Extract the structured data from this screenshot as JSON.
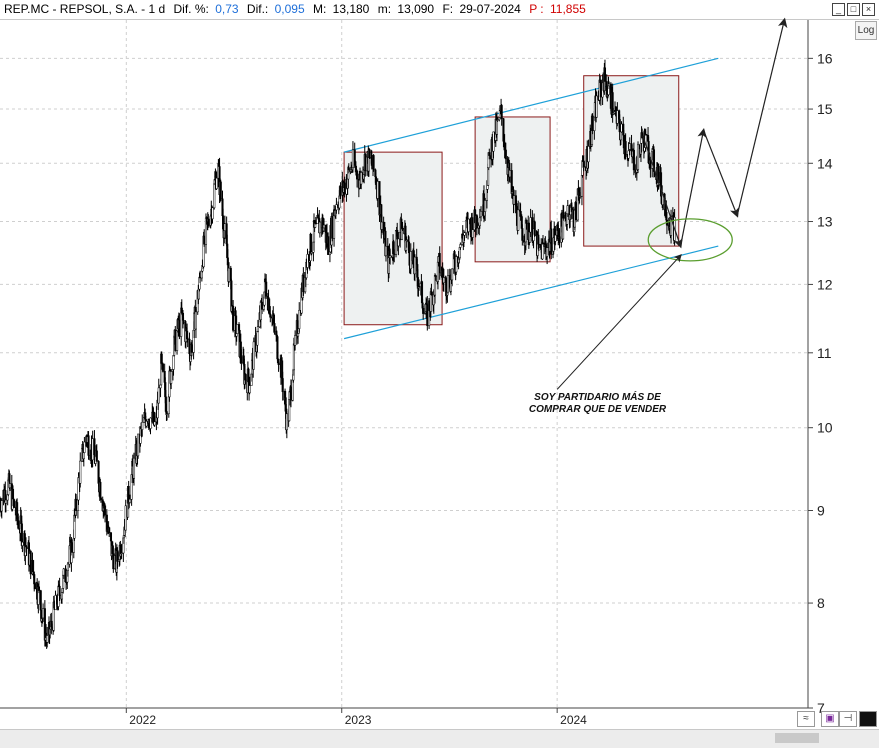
{
  "header": {
    "symbol": "REP.MC - REPSOL,  S.A. -  1 d",
    "dif_pct_label": "Dif. %:",
    "dif_pct_value": "0,73",
    "dif_label": "Dif.:",
    "dif_value": "0,095",
    "max_label": "M:",
    "max_value": "13,180",
    "min_label": "m:",
    "min_value": "13,090",
    "date_label": "F:",
    "date_value": "29-07-2024",
    "p_label": "P :",
    "p_value": "11,855",
    "colors": {
      "label": "#000000",
      "value_blue": "#1e6fd9",
      "value_red": "#d00000"
    }
  },
  "buttons": {
    "log_label": "Log"
  },
  "annotation": {
    "text": "SOY PARTIDARIO MÁS DE COMPRAR QUE DE VENDER"
  },
  "window_controls": [
    "minimize-icon",
    "maximize-icon",
    "close-icon"
  ],
  "chart_data": {
    "type": "candlestick",
    "y_scale": "log",
    "ylim": [
      7,
      16.8
    ],
    "y_ticks": [
      7,
      8,
      9,
      10,
      11,
      12,
      13,
      14,
      15,
      16
    ],
    "x_range": [
      "2021-06-01",
      "2025-03-01"
    ],
    "x_ticks": [
      {
        "label": "2022",
        "date": "2022-01-01"
      },
      {
        "label": "2023",
        "date": "2023-01-01"
      },
      {
        "label": "2024",
        "date": "2024-01-01"
      }
    ],
    "grid": true,
    "price_path": [
      [
        "2021-06-01",
        9.1
      ],
      [
        "2021-06-15",
        9.3
      ],
      [
        "2021-07-01",
        8.9
      ],
      [
        "2021-07-20",
        8.5
      ],
      [
        "2021-08-05",
        8.1
      ],
      [
        "2021-08-20",
        7.6
      ],
      [
        "2021-09-05",
        8.0
      ],
      [
        "2021-09-20",
        8.3
      ],
      [
        "2021-10-01",
        8.6
      ],
      [
        "2021-10-15",
        9.5
      ],
      [
        "2021-10-25",
        9.9
      ],
      [
        "2021-11-10",
        9.6
      ],
      [
        "2021-11-25",
        9.0
      ],
      [
        "2021-12-05",
        8.6
      ],
      [
        "2021-12-15",
        8.4
      ],
      [
        "2021-12-28",
        8.8
      ],
      [
        "2022-01-10",
        9.4
      ],
      [
        "2022-01-25",
        9.9
      ],
      [
        "2022-02-05",
        10.2
      ],
      [
        "2022-02-20",
        10.0
      ],
      [
        "2022-03-01",
        10.8
      ],
      [
        "2022-03-10",
        10.3
      ],
      [
        "2022-03-25",
        11.2
      ],
      [
        "2022-04-05",
        11.5
      ],
      [
        "2022-04-20",
        11.0
      ],
      [
        "2022-05-05",
        12.0
      ],
      [
        "2022-05-15",
        12.8
      ],
      [
        "2022-05-25",
        13.2
      ],
      [
        "2022-06-05",
        14.0
      ],
      [
        "2022-06-10",
        13.4
      ],
      [
        "2022-06-20",
        12.5
      ],
      [
        "2022-07-01",
        11.5
      ],
      [
        "2022-07-10",
        11.2
      ],
      [
        "2022-07-20",
        10.7
      ],
      [
        "2022-07-28",
        10.6
      ],
      [
        "2022-08-10",
        11.2
      ],
      [
        "2022-08-25",
        12.0
      ],
      [
        "2022-09-05",
        11.5
      ],
      [
        "2022-09-20",
        10.8
      ],
      [
        "2022-10-01",
        10.0
      ],
      [
        "2022-10-10",
        10.8
      ],
      [
        "2022-10-20",
        11.5
      ],
      [
        "2022-11-01",
        12.3
      ],
      [
        "2022-11-15",
        12.8
      ],
      [
        "2022-11-28",
        13.0
      ],
      [
        "2022-12-10",
        12.6
      ],
      [
        "2022-12-22",
        13.3
      ],
      [
        "2023-01-05",
        13.6
      ],
      [
        "2023-01-20",
        14.0
      ],
      [
        "2023-02-01",
        13.7
      ],
      [
        "2023-02-10",
        14.1
      ],
      [
        "2023-02-20",
        14.0
      ],
      [
        "2023-03-01",
        13.7
      ],
      [
        "2023-03-10",
        13.0
      ],
      [
        "2023-03-20",
        12.3
      ],
      [
        "2023-04-01",
        12.7
      ],
      [
        "2023-04-15",
        12.9
      ],
      [
        "2023-04-25",
        12.5
      ],
      [
        "2023-05-10",
        12.1
      ],
      [
        "2023-05-25",
        11.5
      ],
      [
        "2023-06-05",
        11.9
      ],
      [
        "2023-06-15",
        12.3
      ],
      [
        "2023-06-25",
        12.0
      ],
      [
        "2023-07-05",
        12.1
      ],
      [
        "2023-07-20",
        12.6
      ],
      [
        "2023-08-01",
        12.9
      ],
      [
        "2023-08-15",
        13.0
      ],
      [
        "2023-08-30",
        13.3
      ],
      [
        "2023-09-10",
        14.2
      ],
      [
        "2023-09-20",
        14.6
      ],
      [
        "2023-09-28",
        14.9
      ],
      [
        "2023-10-05",
        14.3
      ],
      [
        "2023-10-15",
        13.5
      ],
      [
        "2023-10-25",
        13.1
      ],
      [
        "2023-11-05",
        12.8
      ],
      [
        "2023-11-20",
        12.9
      ],
      [
        "2023-12-01",
        12.5
      ],
      [
        "2023-12-15",
        12.6
      ],
      [
        "2024-01-01",
        12.8
      ],
      [
        "2024-01-15",
        13.0
      ],
      [
        "2024-01-20",
        13.3
      ],
      [
        "2024-01-30",
        13.0
      ],
      [
        "2024-02-10",
        13.7
      ],
      [
        "2024-02-20",
        14.1
      ],
      [
        "2024-03-01",
        14.7
      ],
      [
        "2024-03-10",
        15.2
      ],
      [
        "2024-03-20",
        15.6
      ],
      [
        "2024-04-01",
        15.2
      ],
      [
        "2024-04-10",
        14.8
      ],
      [
        "2024-04-20",
        14.5
      ],
      [
        "2024-05-01",
        14.2
      ],
      [
        "2024-05-15",
        14.0
      ],
      [
        "2024-05-25",
        14.5
      ],
      [
        "2024-06-05",
        14.2
      ],
      [
        "2024-06-20",
        13.8
      ],
      [
        "2024-07-01",
        13.3
      ],
      [
        "2024-07-10",
        13.0
      ],
      [
        "2024-07-18",
        12.9
      ]
    ],
    "projection": [
      [
        "2024-05-25",
        14.5
      ],
      [
        "2024-07-28",
        12.6
      ],
      [
        "2024-09-05",
        14.6
      ],
      [
        "2024-11-01",
        13.1
      ],
      [
        "2025-01-20",
        16.8
      ]
    ],
    "channel_upper": [
      [
        "2023-01-05",
        14.2
      ],
      [
        "2024-09-30",
        16.0
      ]
    ],
    "channel_lower": [
      [
        "2023-01-05",
        11.2
      ],
      [
        "2024-09-30",
        12.6
      ]
    ],
    "boxes": [
      {
        "x0": "2023-01-05",
        "x1": "2023-06-20",
        "y0": 11.4,
        "y1": 14.2
      },
      {
        "x0": "2023-08-15",
        "x1": "2023-12-20",
        "y0": 12.35,
        "y1": 14.85
      },
      {
        "x0": "2024-02-15",
        "x1": "2024-07-25",
        "y0": 12.6,
        "y1": 15.65
      }
    ],
    "ellipse": {
      "x": "2024-08-05",
      "y": 12.7
    },
    "annotation_arrow": {
      "from": [
        "2024-01-01",
        10.5
      ],
      "to": [
        "2024-07-28",
        12.45
      ]
    },
    "colors": {
      "candles": "#000000",
      "channel": "#1ea0d8",
      "box_border": "#8b1a1a",
      "box_fill": "#eef1f1",
      "ellipse": "#5a9e2f",
      "projection": "#222222",
      "grid": "#cfcfcf"
    }
  }
}
